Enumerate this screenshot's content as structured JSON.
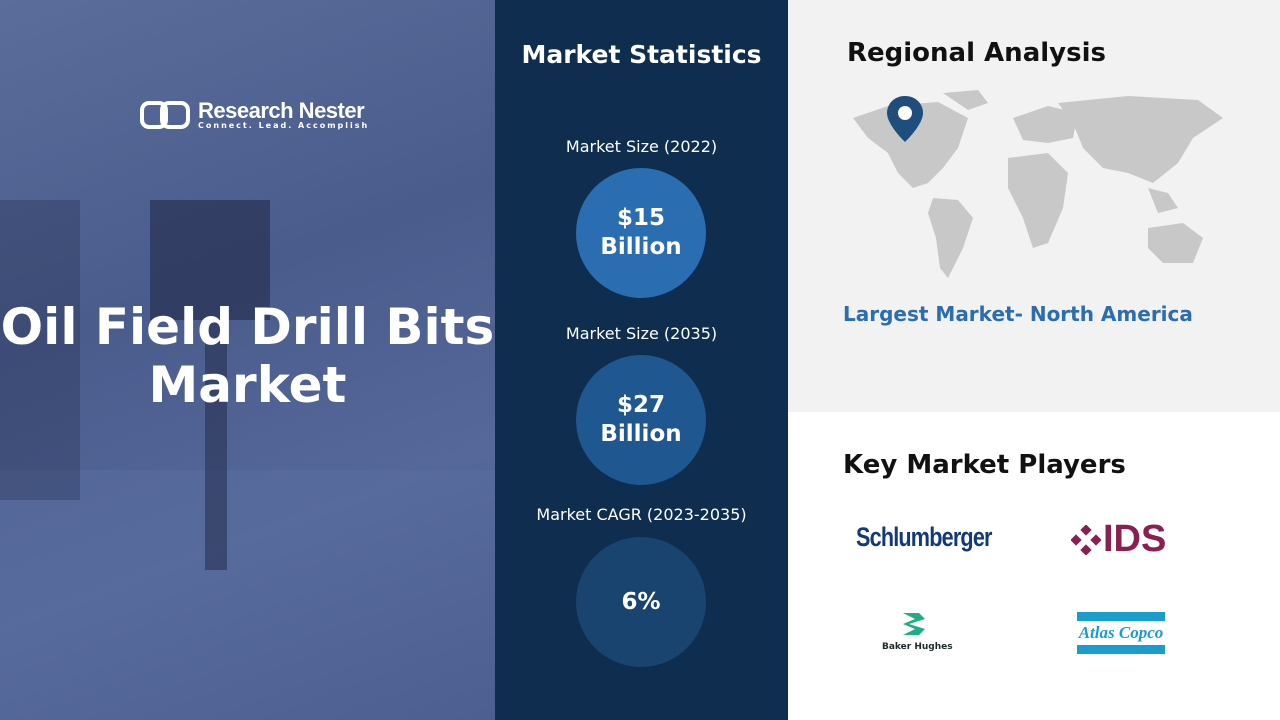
{
  "brand": {
    "name": "Research Nester",
    "tagline": "Connect. Lead. Accomplish"
  },
  "title_line1": "Oil Field Drill Bits",
  "title_line2": "Market",
  "stats": {
    "heading": "Market Statistics",
    "items": [
      {
        "label": "Market Size (2022)",
        "value_line1": "$15",
        "value_line2": "Billion",
        "color": "#2a6db0"
      },
      {
        "label": "Market Size (2035)",
        "value_line1": "$27",
        "value_line2": "Billion",
        "color": "#1f5791"
      },
      {
        "label": "Market CAGR (2023-2035)",
        "value_line1": "6%",
        "value_line2": "",
        "color": "#1a4470"
      }
    ]
  },
  "regional": {
    "heading": "Regional Analysis",
    "largest": "Largest Market- North America",
    "pin_color": "#1f4e7d"
  },
  "players": {
    "heading": "Key Market Players",
    "items": [
      "Schlumberger",
      "IDS",
      "Baker Hughes",
      "Atlas Copco"
    ]
  }
}
